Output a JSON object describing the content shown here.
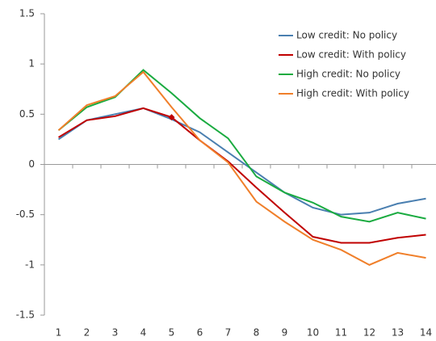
{
  "chart_data": {
    "type": "line",
    "categories": [
      "1",
      "2",
      "3",
      "4",
      "5",
      "6",
      "7",
      "8",
      "9",
      "10",
      "11",
      "12",
      "13",
      "14"
    ],
    "series": [
      {
        "name": "Low credit: No policy",
        "color": "#4a7fb0",
        "values": [
          0.25,
          0.44,
          0.5,
          0.56,
          0.45,
          0.32,
          0.12,
          -0.08,
          -0.28,
          -0.43,
          -0.5,
          -0.48,
          -0.39,
          -0.34
        ]
      },
      {
        "name": "Low credit: With policy",
        "color": "#c00000",
        "values": [
          0.27,
          0.44,
          0.48,
          0.56,
          0.47,
          0.24,
          0.03,
          -0.23,
          -0.48,
          -0.72,
          -0.78,
          -0.78,
          -0.73,
          -0.7
        ]
      },
      {
        "name": "High credit: No policy",
        "color": "#1aab40",
        "values": [
          0.34,
          0.57,
          0.67,
          0.94,
          0.71,
          0.46,
          0.26,
          -0.12,
          -0.28,
          -0.38,
          -0.52,
          -0.57,
          -0.48,
          -0.54
        ]
      },
      {
        "name": "High credit: With policy",
        "color": "#f07f2a",
        "values": [
          0.34,
          0.59,
          0.68,
          0.92,
          0.57,
          0.24,
          0.02,
          -0.37,
          -0.57,
          -0.75,
          -0.85,
          -1.0,
          -0.88,
          -0.93
        ]
      }
    ],
    "highlight": {
      "series": 1,
      "index": 4
    },
    "ylim": [
      -1.5,
      1.5
    ],
    "yticks": [
      -1.5,
      -1,
      -0.5,
      0,
      0.5,
      1,
      1.5
    ],
    "grid": false,
    "legend": "upper right"
  }
}
